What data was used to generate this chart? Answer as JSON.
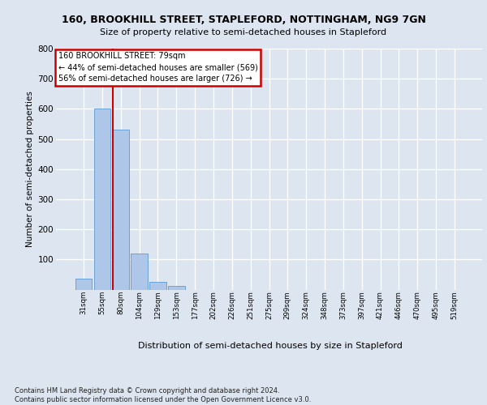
{
  "title1": "160, BROOKHILL STREET, STAPLEFORD, NOTTINGHAM, NG9 7GN",
  "title2": "Size of property relative to semi-detached houses in Stapleford",
  "xlabel": "Distribution of semi-detached houses by size in Stapleford",
  "ylabel": "Number of semi-detached properties",
  "footnote": "Contains HM Land Registry data © Crown copyright and database right 2024.\nContains public sector information licensed under the Open Government Licence v3.0.",
  "bin_labels": [
    "31sqm",
    "55sqm",
    "80sqm",
    "104sqm",
    "129sqm",
    "153sqm",
    "177sqm",
    "202sqm",
    "226sqm",
    "251sqm",
    "275sqm",
    "299sqm",
    "324sqm",
    "348sqm",
    "373sqm",
    "397sqm",
    "421sqm",
    "446sqm",
    "470sqm",
    "495sqm",
    "519sqm"
  ],
  "bar_values": [
    35,
    600,
    530,
    120,
    25,
    12,
    0,
    0,
    0,
    0,
    0,
    0,
    0,
    0,
    0,
    0,
    0,
    0,
    0,
    0,
    0
  ],
  "bar_color": "#aec6e8",
  "bar_edge_color": "#5b9bd5",
  "red_line_color": "#cc0000",
  "annotation_box_color": "#cc0000",
  "annotation_title": "160 BROOKHILL STREET: 79sqm",
  "annotation_line1": "← 44% of semi-detached houses are smaller (569)",
  "annotation_line2": "56% of semi-detached houses are larger (726) →",
  "red_bar_index": 2,
  "ylim": [
    0,
    800
  ],
  "yticks": [
    100,
    200,
    300,
    400,
    500,
    600,
    700,
    800
  ],
  "background_color": "#dde6f0",
  "plot_bg_color": "#dde6f0",
  "grid_color": "#ffffff"
}
